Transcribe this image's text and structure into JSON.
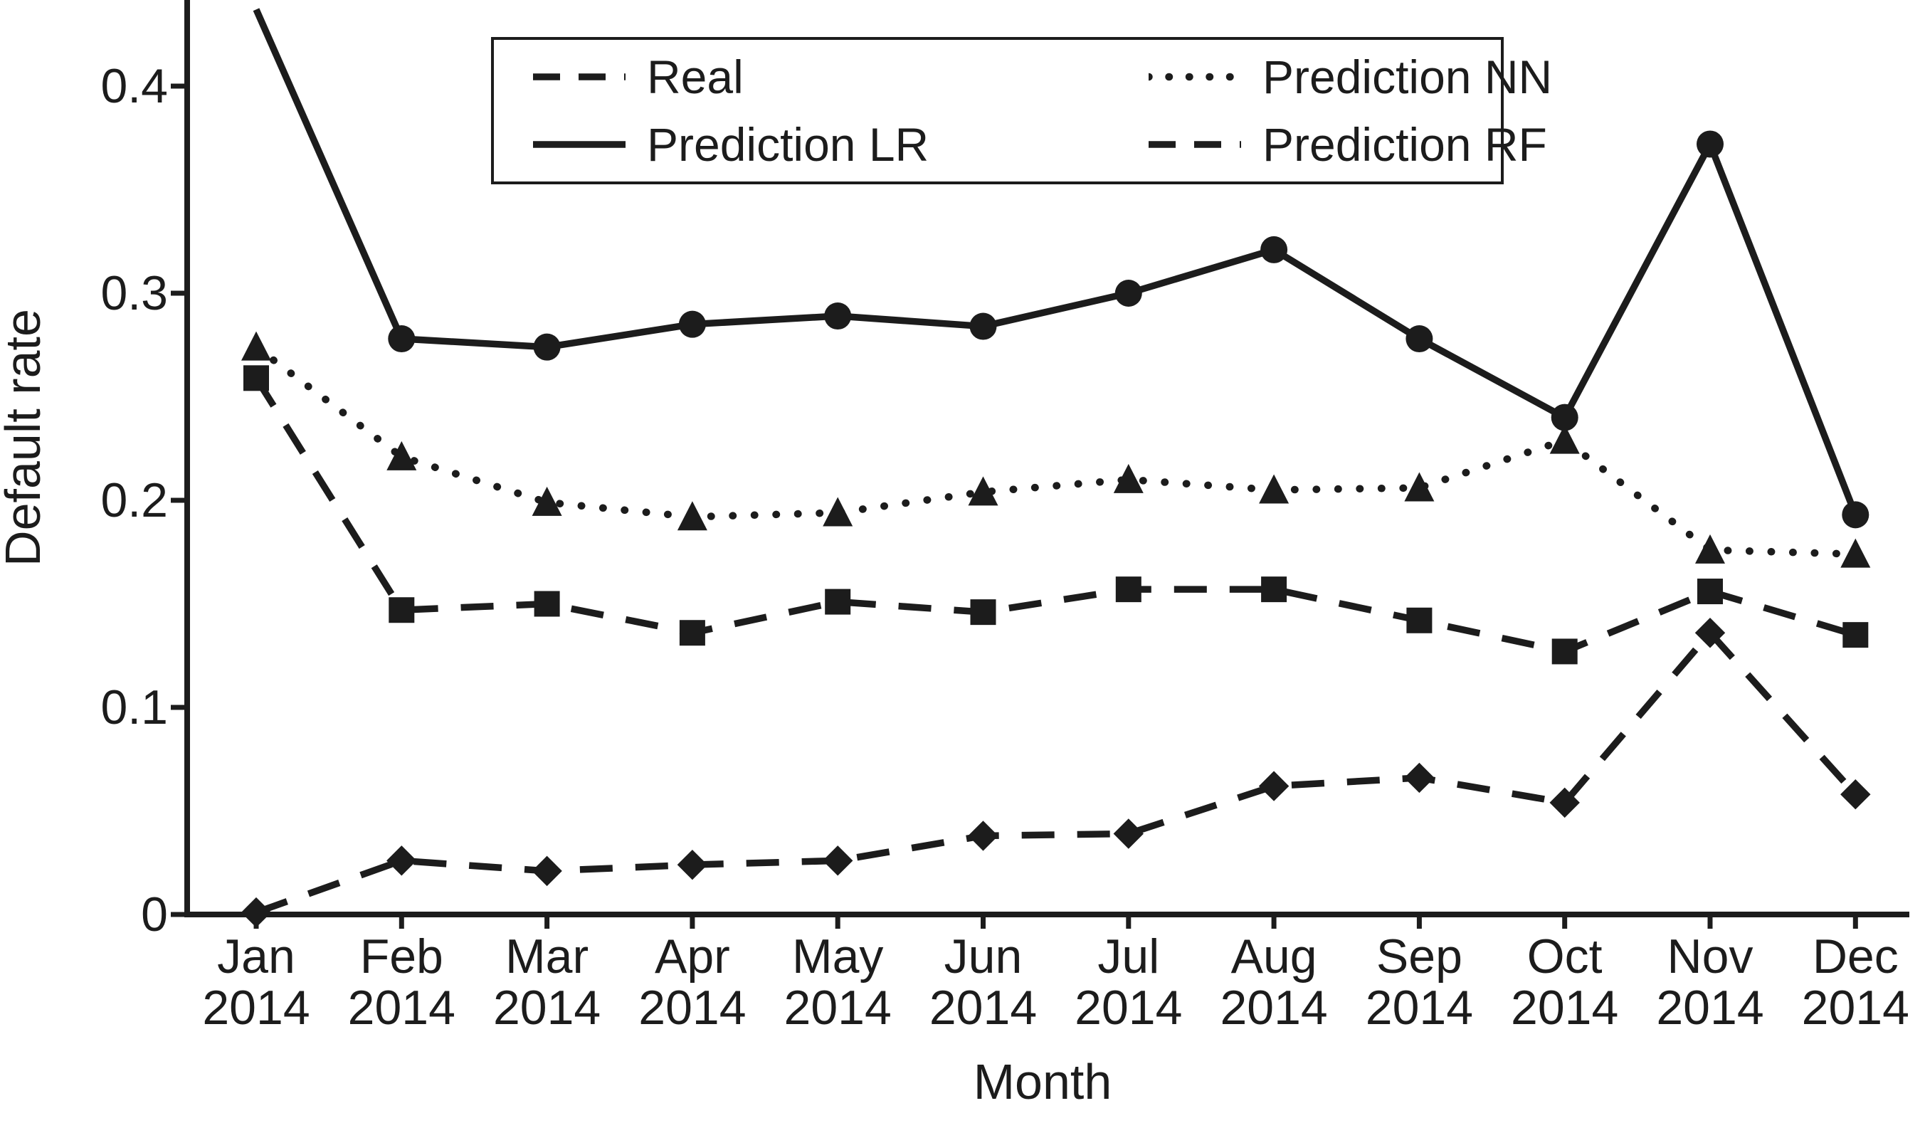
{
  "figure": {
    "background_color": "#ffffff",
    "ink_color": "#1c1c1c"
  },
  "chart_data": {
    "type": "line",
    "title": "",
    "xlabel": "Month",
    "ylabel": "Default rate",
    "grid": false,
    "legend_position": "top-center-inside",
    "ylim": [
      0,
      0.4425
    ],
    "y_ticks": [
      0,
      0.1,
      0.2,
      0.3,
      0.4
    ],
    "y_tick_labels": [
      "0",
      "0.1",
      "0.2",
      "0.3",
      "0.4"
    ],
    "categories": [
      "Jan 2014",
      "Feb 2014",
      "Mar 2014",
      "Apr 2014",
      "May 2014",
      "Jun 2014",
      "Jul 2014",
      "Aug 2014",
      "Sep 2014",
      "Oct 2014",
      "Nov 2014",
      "Dec 2014"
    ],
    "series": [
      {
        "name": "Real",
        "marker": "diamond",
        "line_style": "dashed",
        "values": [
          0.001,
          0.026,
          0.021,
          0.024,
          0.026,
          0.038,
          0.039,
          0.062,
          0.066,
          0.054,
          0.136,
          0.058
        ]
      },
      {
        "name": "Prediction LR",
        "marker": "circle",
        "line_style": "solid",
        "values": [
          0.437,
          0.278,
          0.274,
          0.285,
          0.289,
          0.284,
          0.3,
          0.321,
          0.278,
          0.24,
          0.372,
          0.193
        ]
      },
      {
        "name": "Prediction NN",
        "marker": "triangle",
        "line_style": "dotted",
        "values": [
          0.274,
          0.221,
          0.199,
          0.192,
          0.194,
          0.204,
          0.21,
          0.205,
          0.206,
          0.229,
          0.176,
          0.174
        ]
      },
      {
        "name": "Prediction RF",
        "marker": "square",
        "line_style": "dashed",
        "values": [
          0.259,
          0.147,
          0.15,
          0.136,
          0.151,
          0.146,
          0.157,
          0.157,
          0.142,
          0.127,
          0.156,
          0.135
        ]
      }
    ]
  }
}
